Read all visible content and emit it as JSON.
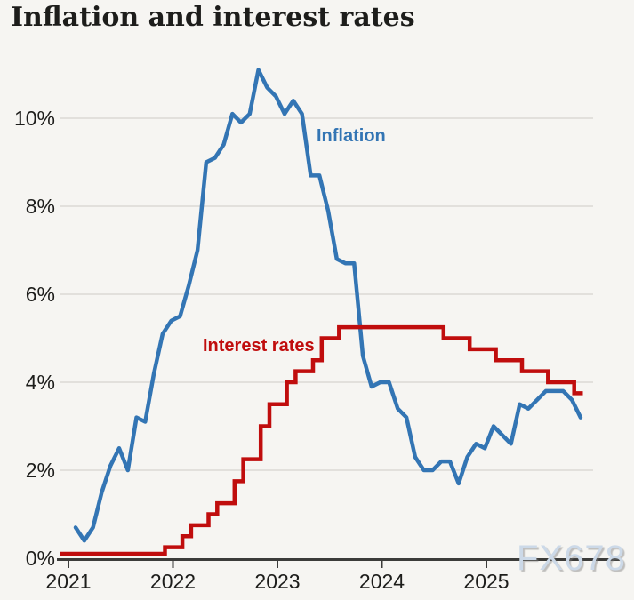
{
  "title": "Inflation and interest rates",
  "watermark": "FX678",
  "colors": {
    "background": "#f6f5f2",
    "text": "#1d1d1b",
    "axis": "#3c3c3a",
    "grid": "#dcdad5",
    "inflation": "#3375b4",
    "rates": "#c00d0d",
    "watermark": "#ccd9e8"
  },
  "chart_data": {
    "type": "line",
    "title": "Inflation and interest rates",
    "grid": true,
    "legend_position": "inline-annotations",
    "x_axis": {
      "unit": "month",
      "tick_labels": [
        "2021",
        "2022",
        "2023",
        "2024",
        "2025"
      ]
    },
    "y_axis": {
      "unit": "percent",
      "ticks": [
        0,
        2,
        4,
        6,
        8,
        10
      ],
      "tick_labels": [
        "0%",
        "2%",
        "4%",
        "6%",
        "8%",
        "10%"
      ],
      "range": [
        0,
        11.5
      ]
    },
    "series": [
      {
        "name": "inflation",
        "label": "Inflation",
        "color": "#3375b4",
        "line_style": "solid",
        "x_start": "2021-01",
        "x_end": "2025-11",
        "values": [
          0.7,
          0.4,
          0.7,
          1.5,
          2.1,
          2.5,
          2.0,
          3.2,
          3.1,
          4.2,
          5.1,
          5.4,
          5.5,
          6.2,
          7.0,
          9.0,
          9.1,
          9.4,
          10.1,
          9.9,
          10.1,
          11.1,
          10.7,
          10.5,
          10.1,
          10.4,
          10.1,
          8.7,
          8.7,
          7.9,
          6.8,
          6.7,
          6.7,
          4.6,
          3.9,
          4.0,
          4.0,
          3.4,
          3.2,
          2.3,
          2.0,
          2.0,
          2.2,
          2.2,
          1.7,
          2.3,
          2.6,
          2.5,
          3.0,
          2.8,
          2.6,
          3.5,
          3.4,
          3.6,
          3.8,
          3.8,
          3.8,
          3.6,
          3.2
        ]
      },
      {
        "name": "interest-rates",
        "label": "Interest rates",
        "color": "#c00d0d",
        "line_style": "step",
        "x_start": "2020-12",
        "x_end": "2025-12",
        "values": [
          0.1,
          0.1,
          0.1,
          0.1,
          0.1,
          0.1,
          0.1,
          0.1,
          0.1,
          0.1,
          0.1,
          0.1,
          0.25,
          0.25,
          0.5,
          0.75,
          0.75,
          1.0,
          1.25,
          1.25,
          1.75,
          2.25,
          2.25,
          3.0,
          3.5,
          3.5,
          4.0,
          4.25,
          4.25,
          4.5,
          5.0,
          5.0,
          5.25,
          5.25,
          5.25,
          5.25,
          5.25,
          5.25,
          5.25,
          5.25,
          5.25,
          5.25,
          5.25,
          5.25,
          5.0,
          5.0,
          5.0,
          4.75,
          4.75,
          4.75,
          4.5,
          4.5,
          4.5,
          4.25,
          4.25,
          4.25,
          4.0,
          4.0,
          4.0,
          3.75,
          3.75
        ]
      }
    ]
  }
}
